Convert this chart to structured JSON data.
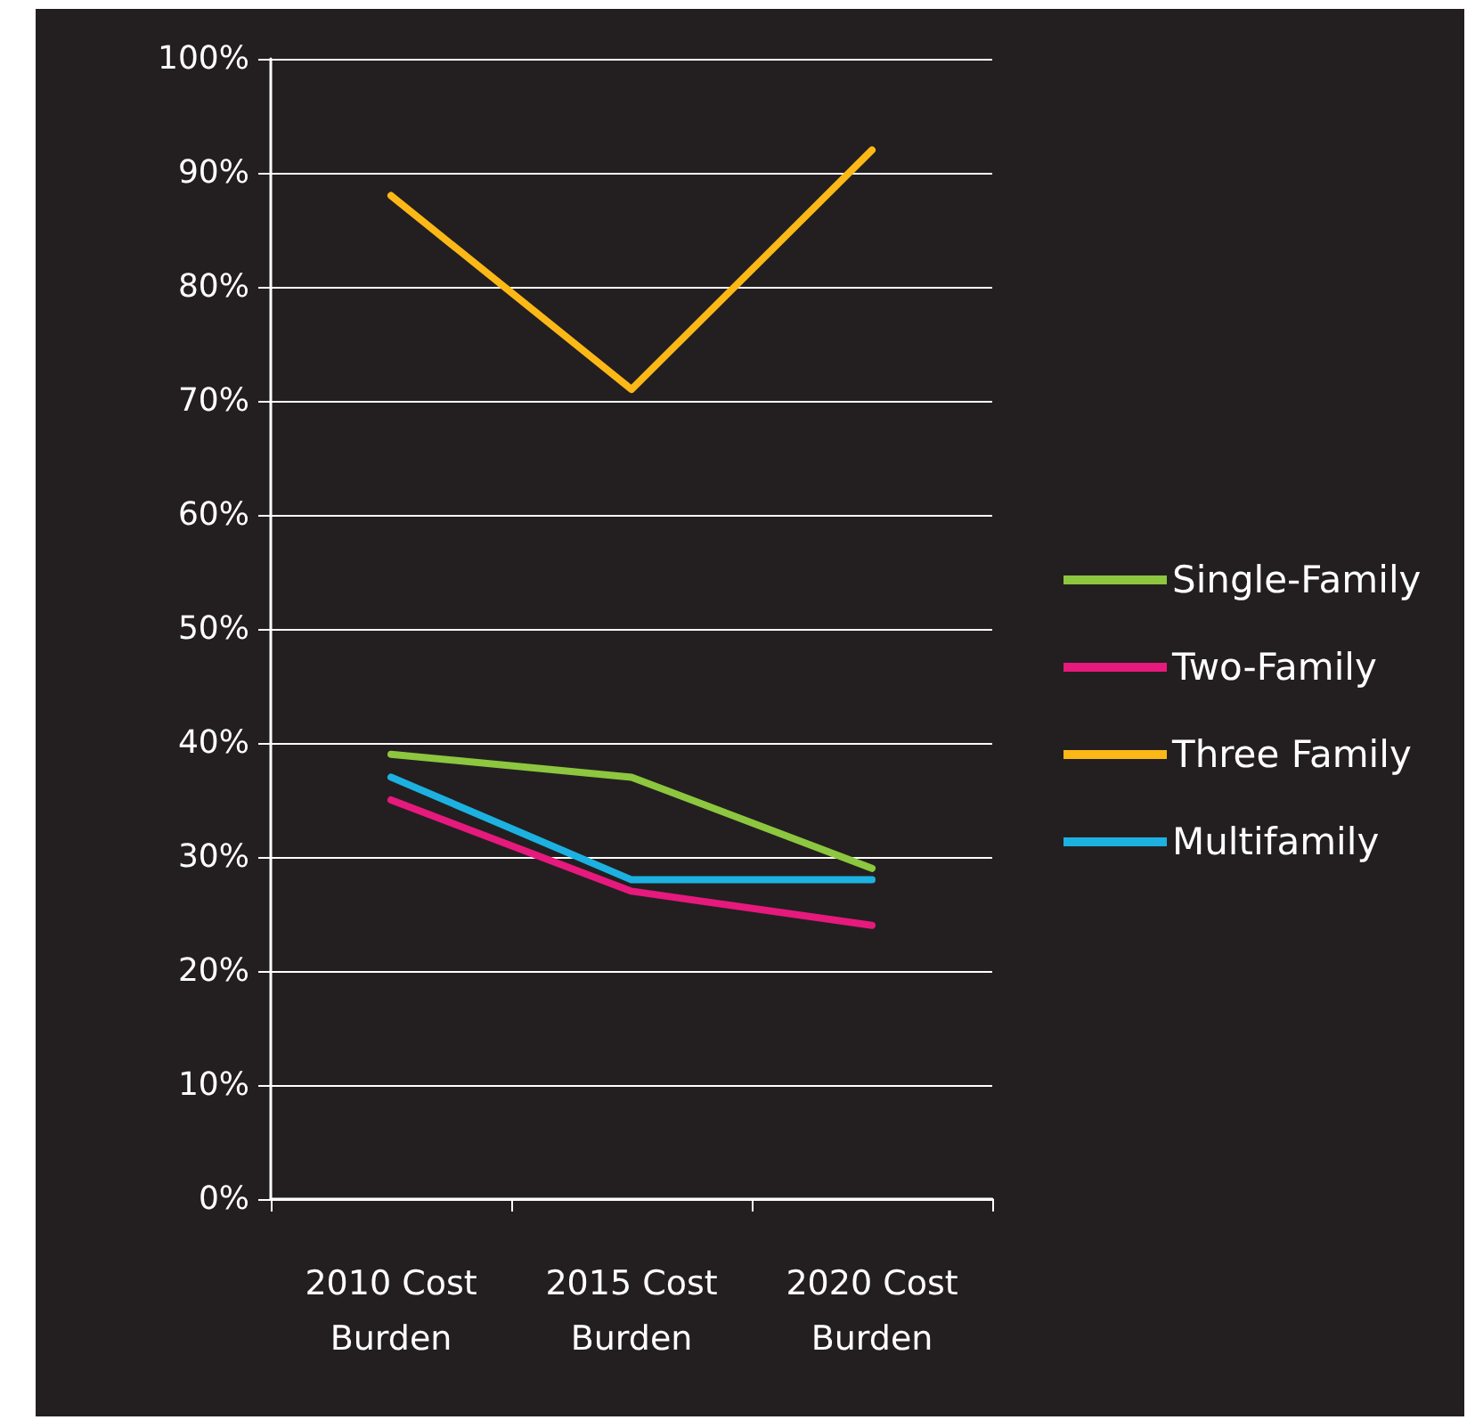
{
  "chart_data": {
    "type": "line",
    "categories": [
      "2010 Cost\nBurden",
      "2015 Cost\nBurden",
      "2020 Cost\nBurden"
    ],
    "series": [
      {
        "name": "Single-Family",
        "color": "#8dc63f",
        "values": [
          39,
          37,
          29
        ]
      },
      {
        "name": "Two-Family",
        "color": "#e6197d",
        "values": [
          35,
          27,
          24
        ]
      },
      {
        "name": "Three Family",
        "color": "#fbb817",
        "values": [
          88,
          71,
          92
        ]
      },
      {
        "name": "Multifamily",
        "color": "#1cb1e0",
        "values": [
          37,
          28,
          28
        ]
      }
    ],
    "ylim": [
      0,
      100
    ],
    "yticks": [
      {
        "value": 0,
        "label": "0%"
      },
      {
        "value": 10,
        "label": "10%"
      },
      {
        "value": 20,
        "label": "20%"
      },
      {
        "value": 30,
        "label": "30%"
      },
      {
        "value": 40,
        "label": "40%"
      },
      {
        "value": 50,
        "label": "50%"
      },
      {
        "value": 60,
        "label": "60%"
      },
      {
        "value": 70,
        "label": "70%"
      },
      {
        "value": 80,
        "label": "80%"
      },
      {
        "value": 90,
        "label": "90%"
      },
      {
        "value": 100,
        "label": "100%"
      }
    ],
    "grid": "y",
    "legend": "right",
    "marker": "none",
    "line_style": "solid"
  }
}
